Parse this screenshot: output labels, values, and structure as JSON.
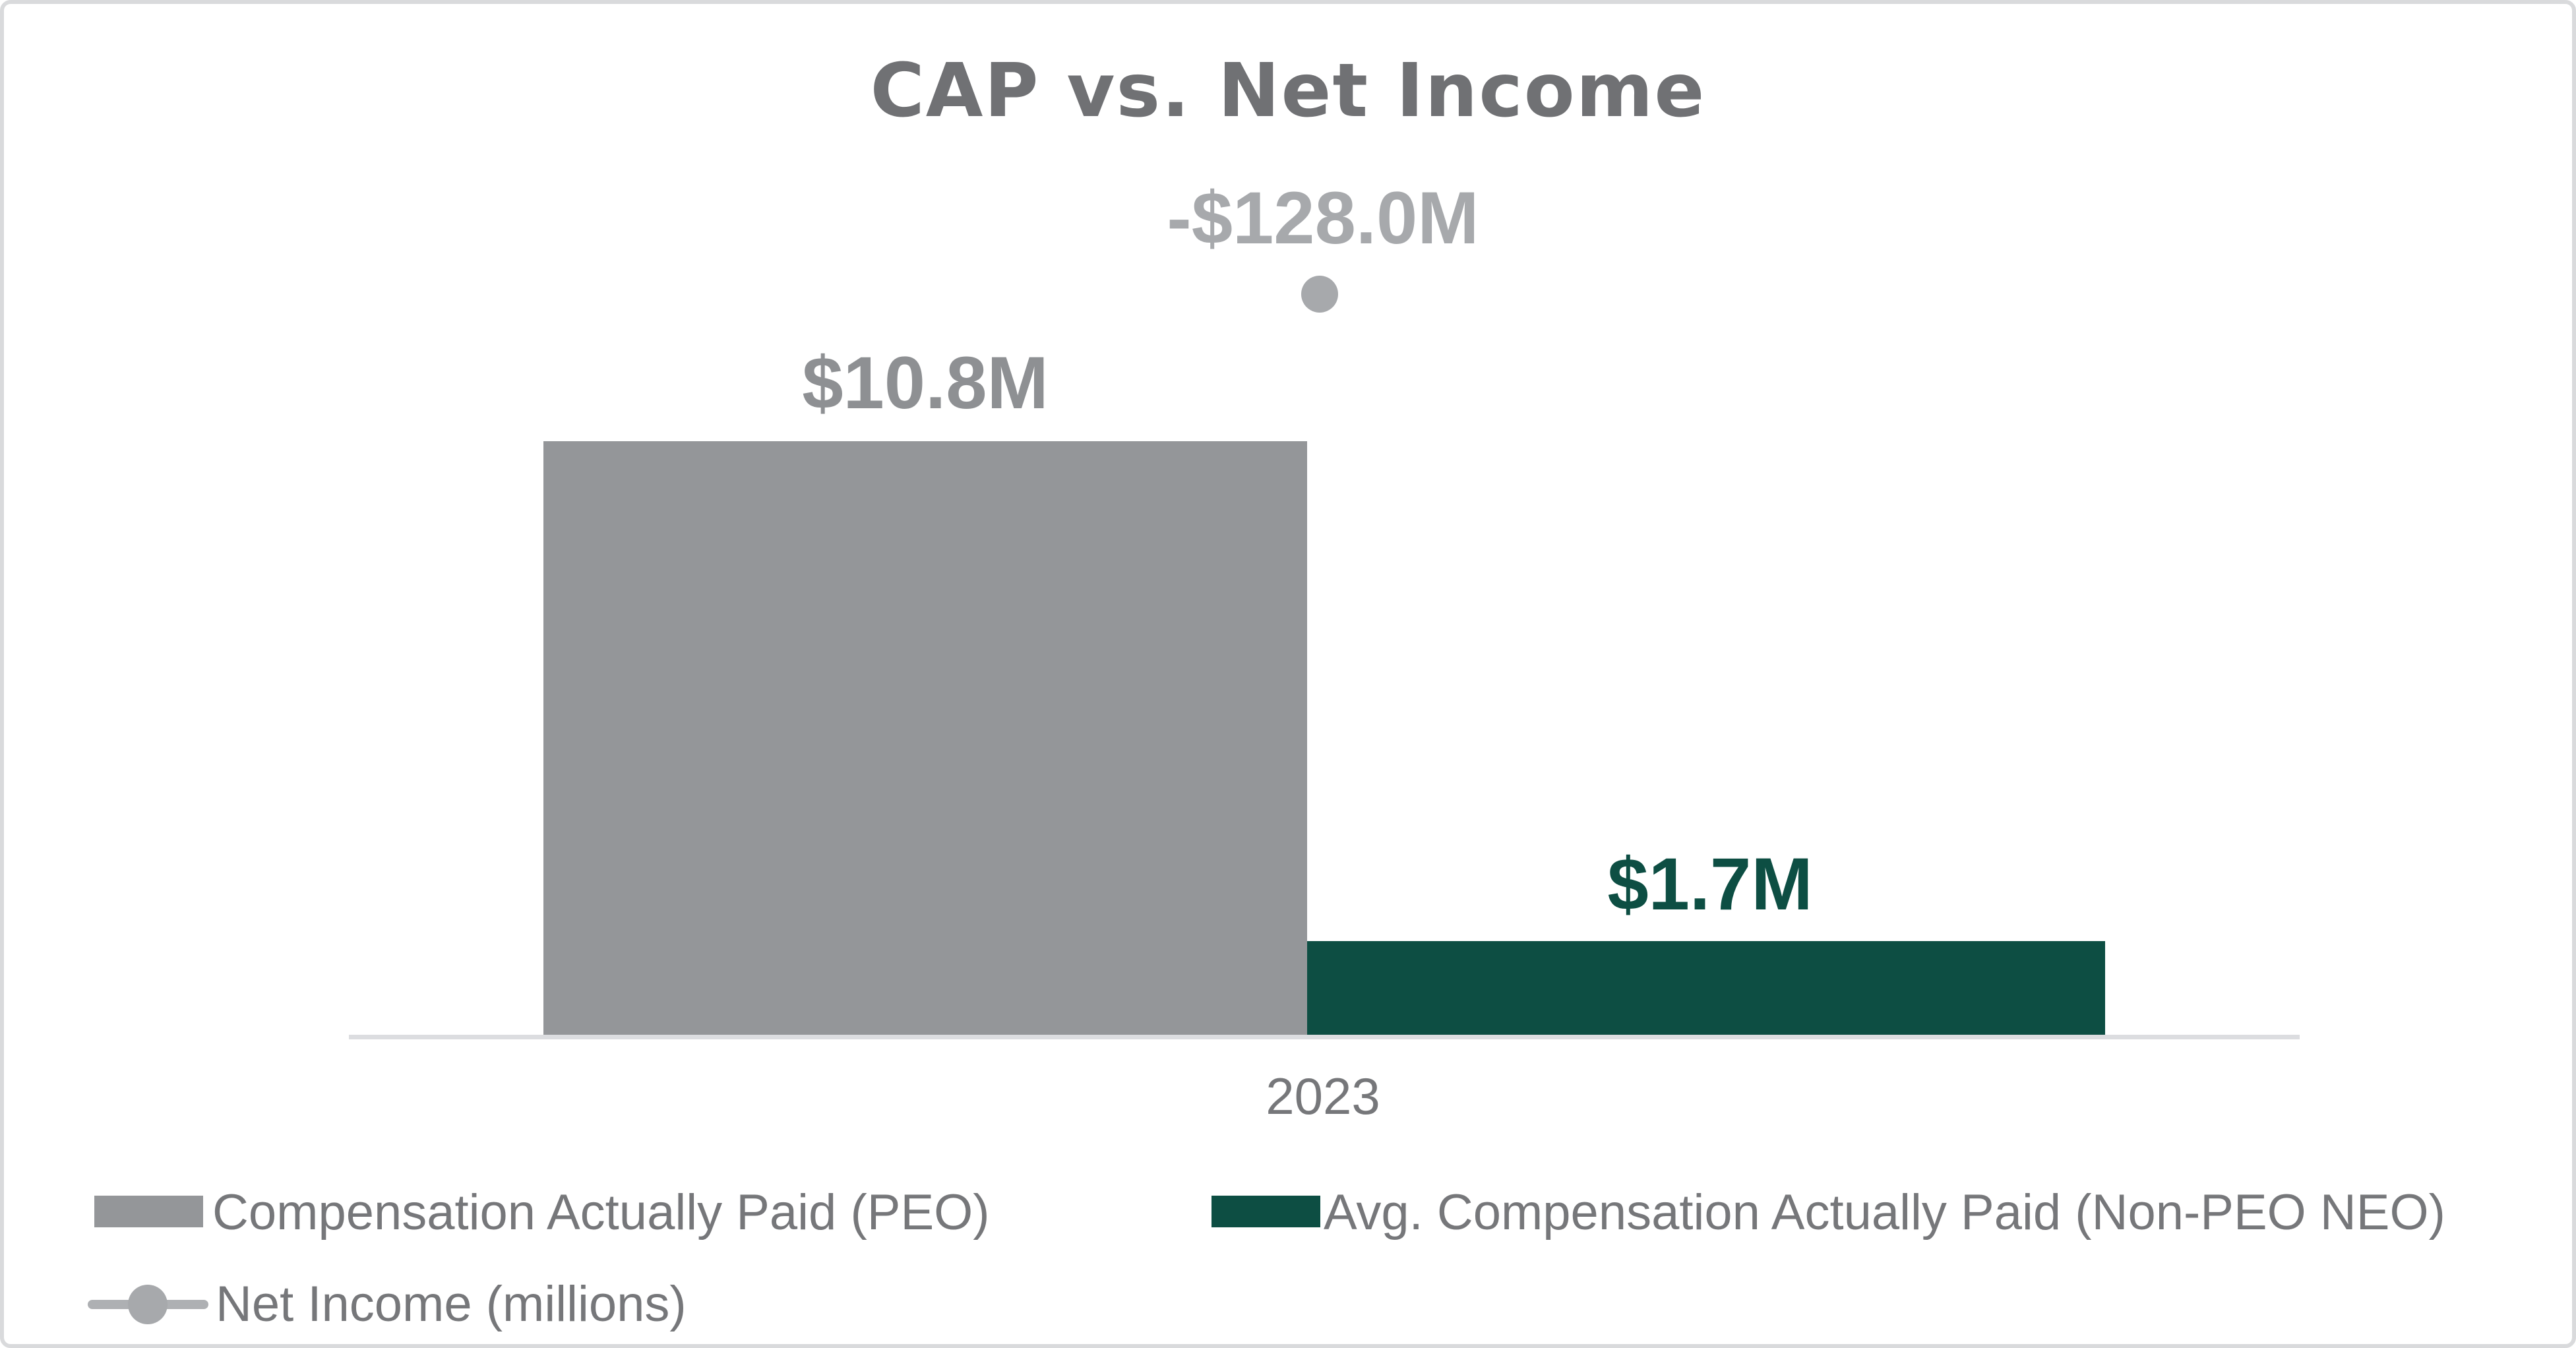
{
  "chart_data": {
    "type": "combo",
    "title": "CAP vs. Net Income",
    "categories": [
      "2023"
    ],
    "series": [
      {
        "name": "Compensation Actually Paid (PEO)",
        "type": "bar",
        "values": [
          10.8
        ],
        "data_label": "$10.8M",
        "color": "#949699"
      },
      {
        "name": "Avg. Compensation Actually Paid (Non-PEO NEO)",
        "type": "bar",
        "values": [
          1.7
        ],
        "data_label": "$1.7M",
        "color": "#0d4e43"
      },
      {
        "name": "Net Income (millions)",
        "type": "line",
        "values": [
          -128.0
        ],
        "data_label": "-$128.0M",
        "color": "#a7a9ac"
      }
    ],
    "value_unit": "millions USD",
    "xlabel": "",
    "ylabel": "",
    "y_axis_visible": false,
    "gridlines": false,
    "legend_position": "bottom",
    "axis_line_color": "#dcdde0",
    "title_color": "#707174",
    "text_color": "#76777a"
  }
}
